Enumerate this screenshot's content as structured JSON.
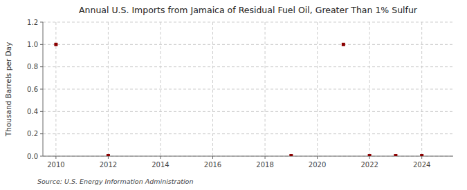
{
  "chart_data": {
    "type": "scatter",
    "title": "Annual U.S. Imports from Jamaica of Residual Fuel Oil, Greater Than 1% Sulfur",
    "ylabel": "Thousand Barrels per Day",
    "source": "Source: U.S. Energy Information Administration",
    "x": [
      2010,
      2012,
      2019,
      2021,
      2022,
      2023,
      2024
    ],
    "values": [
      1.0,
      0.003,
      0.003,
      1.0,
      0.003,
      0.003,
      0.003
    ],
    "color": "#8b0000",
    "marker": "square",
    "xlim": [
      2009.5,
      2025.2
    ],
    "ylim": [
      0.0,
      1.2
    ],
    "xticks": [
      2010,
      2012,
      2014,
      2016,
      2018,
      2020,
      2022,
      2024
    ],
    "yticks": [
      {
        "value": 0.0,
        "label": "0.0"
      },
      0.2,
      0.4,
      0.6,
      0.8,
      {
        "value": 1.0,
        "label": "1.0"
      },
      1.2
    ],
    "grid": true
  }
}
